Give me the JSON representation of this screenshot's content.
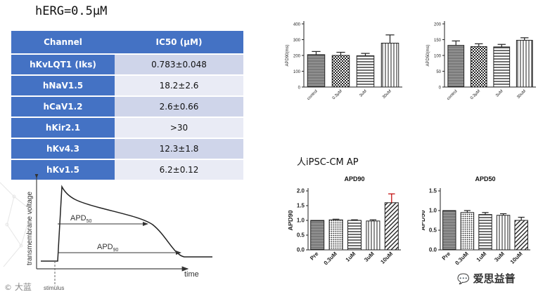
{
  "title": "hERG=0.5μM",
  "ic50_table": {
    "headers": [
      "Channel",
      "IC50 (μM)"
    ],
    "rows": [
      {
        "channel": "hKvLQT1 (Iks)",
        "value": "0.783±0.048"
      },
      {
        "channel": "hNaV1.5",
        "value": "18.2±2.6"
      },
      {
        "channel": "hCaV1.2",
        "value": "2.6±0.66"
      },
      {
        "channel": "hKir2.1",
        "value": ">30"
      },
      {
        "channel": "hKv4.3",
        "value": "12.3±1.8"
      },
      {
        "channel": "hKv1.5",
        "value": "6.2±0.12"
      }
    ]
  },
  "subtitle": "人iPSC-CM AP",
  "ap_diagram": {
    "ylabel": "transmembrane voltage",
    "xlabel": "time",
    "apd50": "APD",
    "apd50_sub": "50",
    "apd90": "APD",
    "apd90_sub": "90",
    "stimulus": "stimulus"
  },
  "watermark": {
    "left_text": "大蓝",
    "right_text": "爱思益普"
  },
  "colors": {
    "table_header": "#4472c4",
    "row_dark": "#cfd5ea",
    "row_light": "#e9ebf5",
    "error_bar": "#c00000"
  },
  "chart_data": [
    {
      "id": "apd90_top",
      "type": "bar",
      "title": "",
      "ylabel": "APD90(ms)",
      "xlabel": "",
      "categories": [
        "control",
        "0.3μM",
        "3uM",
        "30uM"
      ],
      "values": [
        205,
        200,
        198,
        278
      ],
      "errors": [
        20,
        20,
        15,
        52
      ],
      "ylim": [
        0,
        400
      ],
      "yticks": [
        0,
        100,
        200,
        300,
        400
      ]
    },
    {
      "id": "apd50_top",
      "type": "bar",
      "title": "",
      "ylabel": "APD50(ms)",
      "xlabel": "",
      "categories": [
        "control",
        "0.3μM",
        "3uM",
        "30uM"
      ],
      "values": [
        132,
        128,
        127,
        148
      ],
      "errors": [
        14,
        9,
        8,
        8
      ],
      "ylim": [
        0,
        200
      ],
      "yticks": [
        0,
        50,
        100,
        150,
        200
      ]
    },
    {
      "id": "apd90_bottom",
      "type": "bar",
      "title": "APD90",
      "ylabel": "APD90",
      "xlabel": "",
      "categories": [
        "Pre",
        "0.3uM",
        "1uM",
        "3uM",
        "10uM"
      ],
      "values": [
        1.0,
        1.02,
        1.0,
        0.98,
        1.6
      ],
      "errors": [
        0.0,
        0.02,
        0.02,
        0.04,
        0.3
      ],
      "ylim": [
        0,
        2.0
      ],
      "yticks": [
        "0.0",
        "0.5",
        "1.0",
        "1.5",
        "2.0"
      ]
    },
    {
      "id": "apd50_bottom",
      "type": "bar",
      "title": "APD50",
      "ylabel": "APD50",
      "xlabel": "",
      "categories": [
        "Pre",
        "0.3uM",
        "1uM",
        "3uM",
        "10uM"
      ],
      "values": [
        1.0,
        0.95,
        0.9,
        0.88,
        0.75
      ],
      "errors": [
        0.0,
        0.05,
        0.05,
        0.04,
        0.08
      ],
      "ylim": [
        0,
        1.5
      ],
      "yticks": [
        "0.0",
        "0.5",
        "1.0",
        "1.5"
      ]
    }
  ]
}
